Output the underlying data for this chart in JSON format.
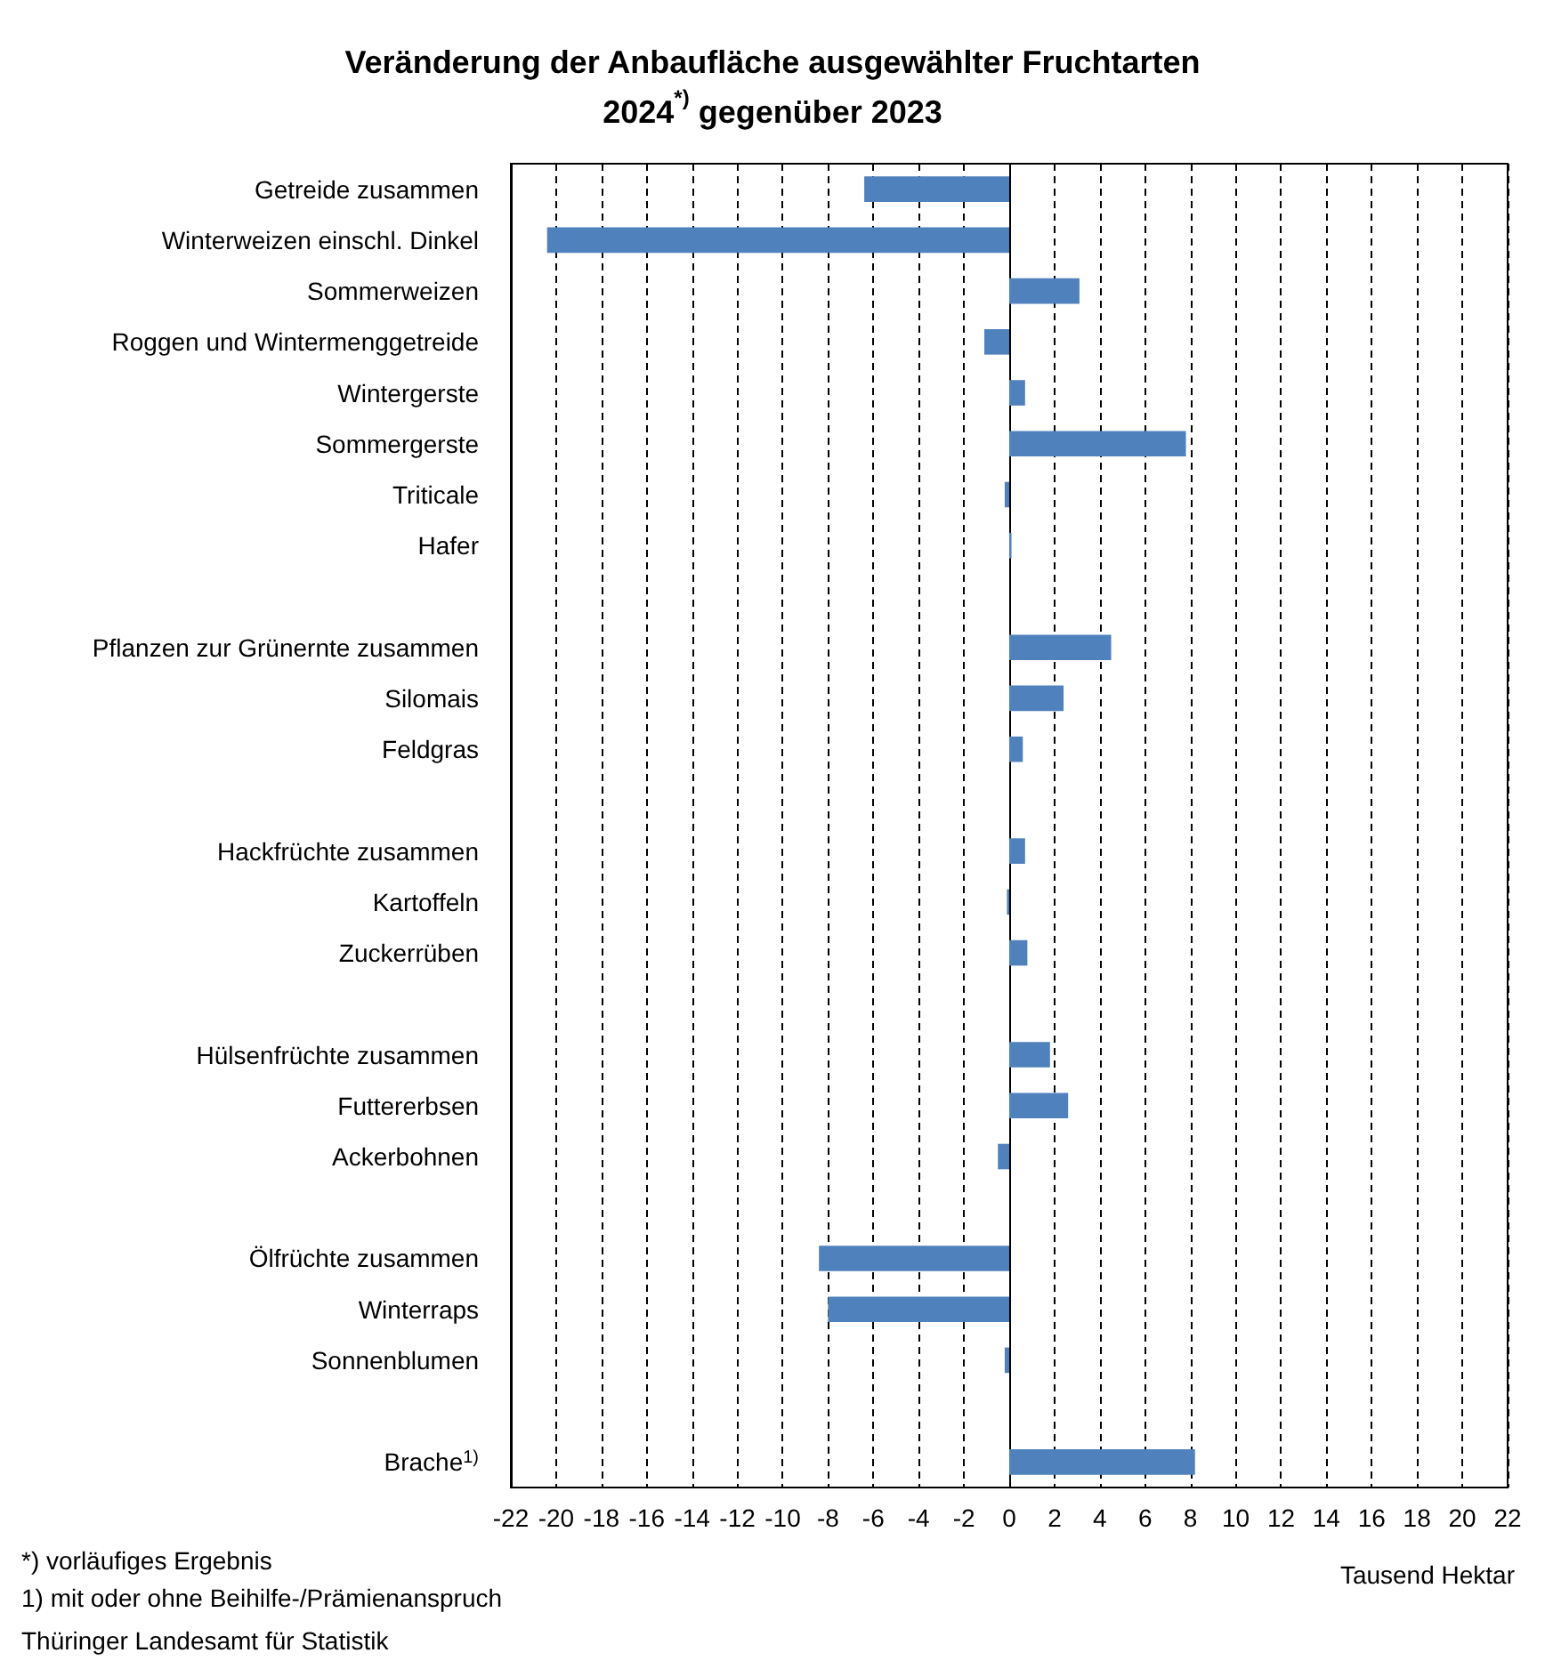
{
  "chart_data": {
    "type": "bar",
    "orientation": "horizontal",
    "title": "Veränderung der Anbaufläche ausgewählter Fruchtarten\n2024$^{*)}$ gegenüber 2023",
    "xlabel": "Tausend Hektar",
    "categories": [
      "Getreide zusammen",
      "Winterweizen einschl. Dinkel",
      "Sommerweizen",
      "Roggen und Wintermenggetreide",
      "Wintergerste",
      "Sommergerste",
      "Triticale",
      "Hafer",
      null,
      "Pflanzen zur Grünernte zusammen",
      "Silomais",
      "Feldgras",
      null,
      "Hackfrüchte zusammen",
      "Kartoffeln",
      "Zuckerrüben",
      null,
      "Hülsenfrüchte zusammen",
      "Futtererbsen",
      "Ackerbohnen",
      null,
      "Ölfrüchte zusammen",
      "Winterraps",
      "Sonnenblumen",
      null,
      "Brache$^{1)}$"
    ],
    "values": [
      -6.4,
      -20.4,
      3.1,
      -1.1,
      0.7,
      7.8,
      -0.2,
      0.1,
      null,
      4.5,
      2.4,
      0.6,
      null,
      0.7,
      -0.1,
      0.8,
      null,
      1.8,
      2.6,
      -0.5,
      null,
      -8.4,
      -8.0,
      -0.2,
      null,
      8.2
    ],
    "color": "#4f81bd",
    "xlim": [
      -22,
      22
    ],
    "xticks": [
      -22,
      -20,
      -18,
      -16,
      -14,
      -12,
      -10,
      -8,
      -6,
      -4,
      -2,
      0,
      2,
      4,
      6,
      8,
      10,
      12,
      14,
      16,
      18,
      20,
      22
    ],
    "grid": "x",
    "annotations": [
      "*) vorläufiges Ergebnis",
      "1) mit oder ohne Beihilfe-/Prämienanspruch",
      "Thüringer Landesamt für Statistik"
    ]
  }
}
